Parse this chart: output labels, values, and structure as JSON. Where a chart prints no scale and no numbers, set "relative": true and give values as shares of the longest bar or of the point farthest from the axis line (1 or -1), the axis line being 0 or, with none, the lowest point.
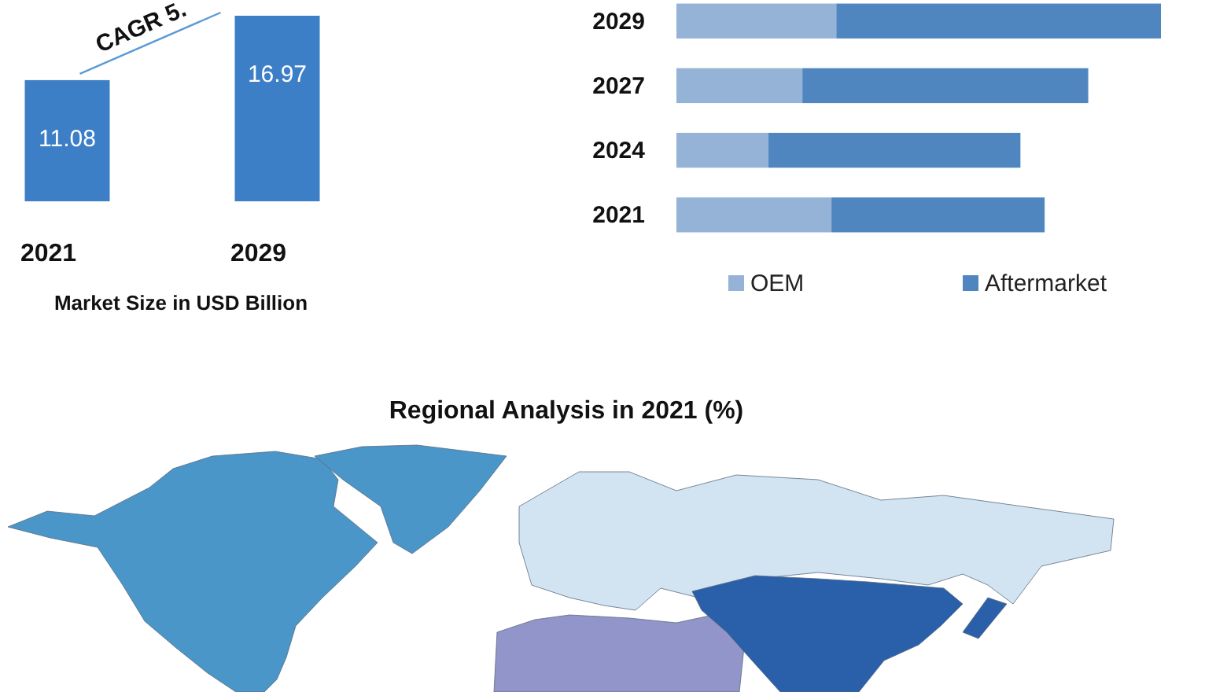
{
  "chart_data": [
    {
      "type": "bar",
      "categories": [
        "2021",
        "2029"
      ],
      "values": [
        11.08,
        16.97
      ],
      "color": "#3d7fc6",
      "data_labels": true,
      "xlabel": "Market Size in USD Billion",
      "annotations": [
        "CAGR 5."
      ]
    },
    {
      "type": "bar",
      "orientation": "horizontal",
      "stacked": true,
      "relative": true,
      "categories": [
        "2029",
        "2027",
        "2024",
        "2021"
      ],
      "series": [
        {
          "name": "OEM",
          "color": "#95b3d7",
          "values": [
            0.33,
            0.26,
            0.19,
            0.32
          ]
        },
        {
          "name": "Aftermarket",
          "color": "#4f86c0",
          "values": [
            0.67,
            0.59,
            0.52,
            0.44
          ]
        }
      ],
      "legend": "bottom"
    },
    {
      "type": "other",
      "title": "Regional Analysis in 2021 (%)"
    }
  ]
}
